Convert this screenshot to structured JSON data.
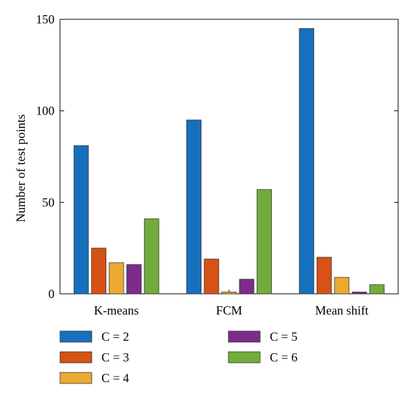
{
  "chart_data": {
    "type": "bar",
    "categories": [
      "K-means",
      "FCM",
      "Mean shift"
    ],
    "series": [
      {
        "name": "C = 2",
        "color": "#1670BE",
        "values": [
          81,
          95,
          145
        ]
      },
      {
        "name": "C = 3",
        "color": "#D65215",
        "values": [
          25,
          19,
          20
        ]
      },
      {
        "name": "C = 4",
        "color": "#EAAA32",
        "values": [
          17,
          1,
          9
        ]
      },
      {
        "name": "C = 5",
        "color": "#7E2C8B",
        "values": [
          16,
          8,
          1
        ]
      },
      {
        "name": "C = 6",
        "color": "#72AC3C",
        "values": [
          41,
          57,
          5
        ]
      }
    ],
    "title": "",
    "xlabel": "",
    "ylabel": "Number of test points",
    "ylim": [
      0,
      150
    ],
    "yticks": [
      0,
      50,
      100,
      150
    ],
    "grid": false,
    "legend": "bottom"
  }
}
